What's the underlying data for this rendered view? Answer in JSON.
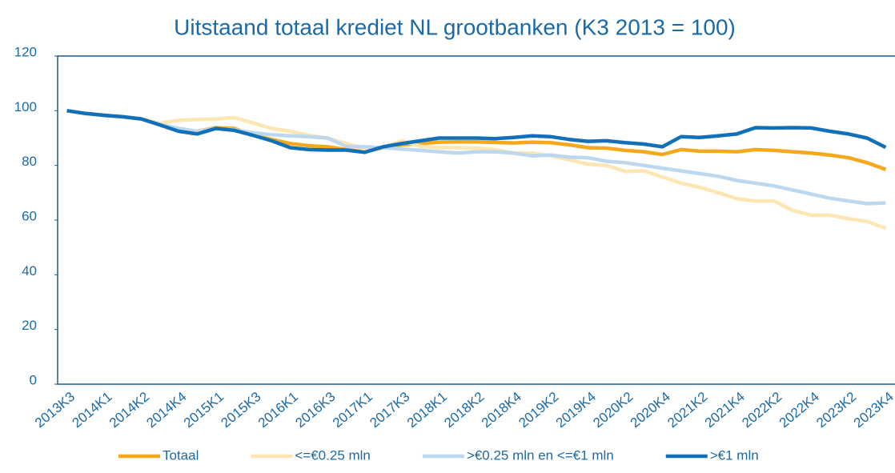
{
  "chart_data": {
    "type": "line",
    "title": "Uitstaand totaal krediet NL grootbanken (K3 2013 = 100)",
    "categories": [
      "2013K3",
      null,
      "2014K1",
      null,
      "2014K2",
      null,
      "2014K4",
      null,
      "2015K1",
      null,
      "2015K3",
      null,
      "2016K1",
      null,
      "2016K3",
      null,
      "2017K1",
      null,
      "2017K3",
      null,
      "2018K1",
      null,
      "2018K2",
      null,
      "2018K4",
      null,
      "2019K2",
      null,
      "2019K4",
      null,
      "2020K2",
      null,
      "2020K4",
      null,
      "2021K2",
      null,
      "2021K4",
      null,
      "2022K2",
      null,
      "2022K4",
      null,
      "2023K2",
      null,
      "2023K4"
    ],
    "series": [
      {
        "name": "Totaal",
        "color": "#f5a81c",
        "values": [
          100,
          99,
          98.3,
          97.8,
          97,
          95,
          93,
          92.5,
          93.8,
          93.5,
          91,
          89.5,
          88,
          87.2,
          86.8,
          85.8,
          85,
          86.5,
          87.5,
          88,
          88.5,
          88.6,
          88.6,
          88.4,
          88.2,
          88.5,
          88.3,
          87.5,
          86.5,
          86.3,
          85.5,
          85,
          84,
          85.8,
          85.2,
          85.2,
          85,
          85.8,
          85.5,
          85,
          84.5,
          83.8,
          82.8,
          81,
          78.5
        ]
      },
      {
        "name": "<=€0.25 mln",
        "color": "#fde6b2",
        "values": [
          100,
          99,
          98.5,
          97.8,
          97,
          95.5,
          96.5,
          96.8,
          97,
          97.5,
          95.5,
          93.5,
          92.5,
          91,
          90,
          88,
          86,
          86.5,
          89,
          87,
          86.5,
          86.5,
          86.3,
          85.8,
          84.5,
          84.5,
          83.5,
          82,
          80.5,
          80,
          77.8,
          78,
          75.8,
          73.5,
          72,
          70,
          67.8,
          67,
          67,
          63.5,
          61.8,
          61.8,
          60.5,
          59.5,
          57
        ]
      },
      {
        "name": ">€0.25 mln en <=€1 mln",
        "color": "#bdd8ee",
        "values": [
          100,
          99,
          98.3,
          97.8,
          97,
          95,
          93.5,
          92.5,
          93.5,
          93,
          92,
          91.2,
          90.8,
          90.5,
          90,
          87,
          86.8,
          86.5,
          86,
          85.5,
          85,
          84.5,
          85,
          85,
          84.5,
          83.5,
          83.8,
          83,
          82.8,
          81.5,
          81,
          80,
          79,
          78,
          77,
          76,
          74.5,
          73.5,
          72.5,
          71,
          69.5,
          68,
          67,
          66,
          66.3
        ]
      },
      {
        "name": ">€1 mln",
        "color": "#1270b8",
        "values": [
          100,
          99,
          98.3,
          97.8,
          97,
          94.8,
          92.5,
          91.5,
          93.5,
          92.8,
          91,
          89,
          86.5,
          85.8,
          85.6,
          85.6,
          84.8,
          86.8,
          88,
          89,
          90,
          90,
          90,
          89.8,
          90.2,
          90.8,
          90.5,
          89.5,
          88.8,
          89,
          88.3,
          87.8,
          86.8,
          90.5,
          90.2,
          90.8,
          91.5,
          93.8,
          93.7,
          93.8,
          93.7,
          92.5,
          91.5,
          90,
          86.6
        ]
      }
    ],
    "ylim": [
      0,
      120
    ],
    "yticks": [
      0,
      20,
      40,
      60,
      80,
      100,
      120
    ]
  }
}
